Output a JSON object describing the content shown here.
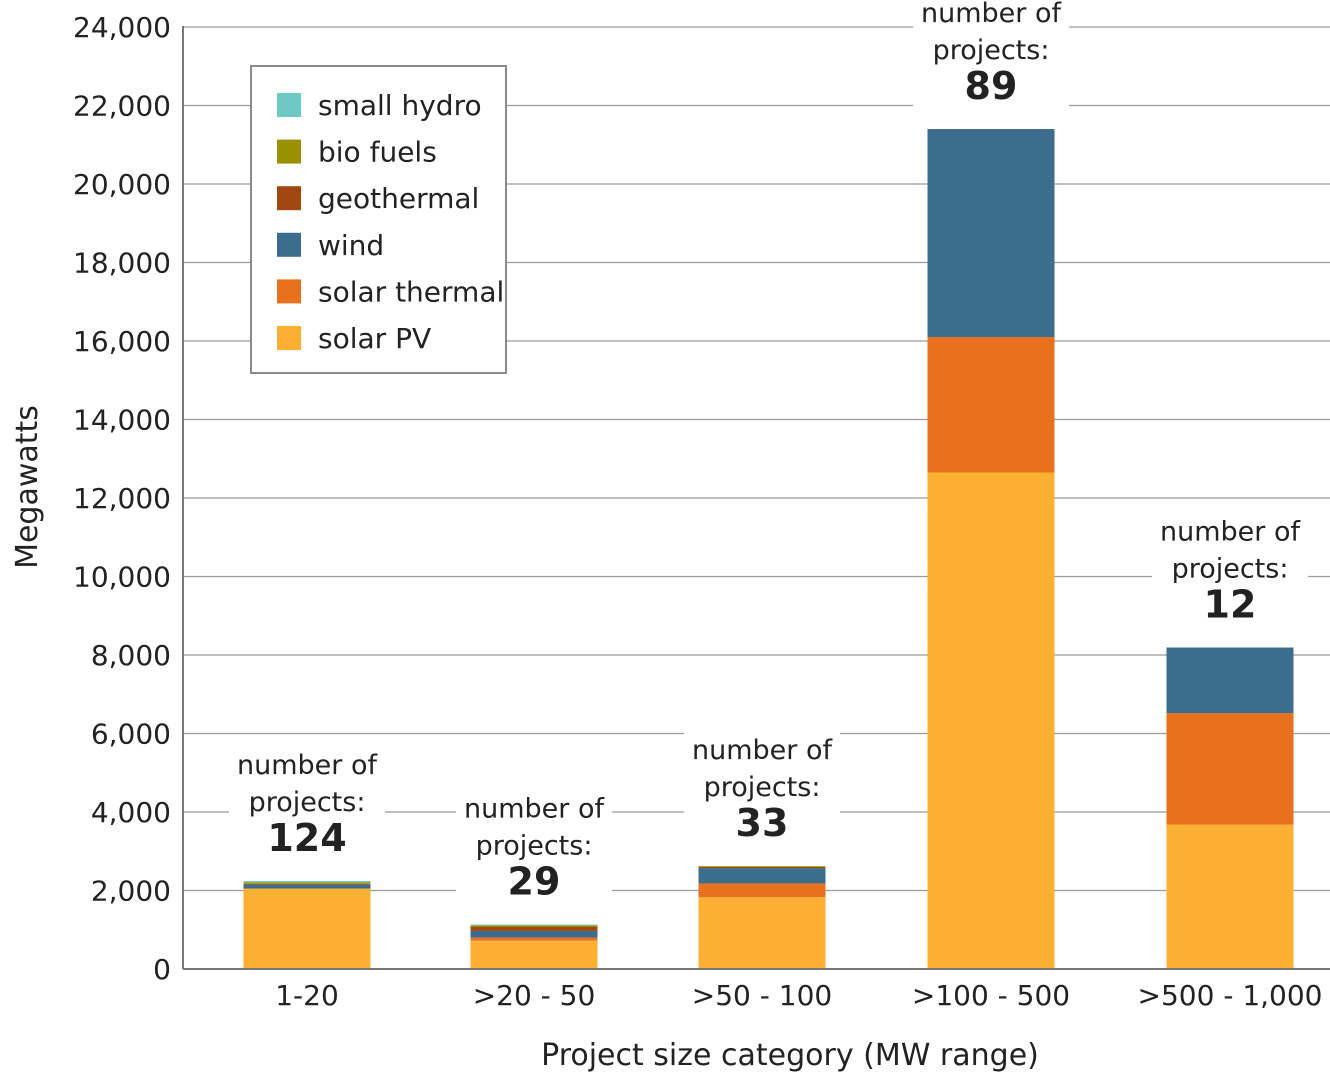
{
  "chart_data": {
    "type": "bar",
    "stacked": true,
    "xlabel": "Project size category (MW range)",
    "ylabel": "Megawatts",
    "ylim": [
      0,
      24000
    ],
    "yticks": [
      0,
      2000,
      4000,
      6000,
      8000,
      10000,
      12000,
      14000,
      16000,
      18000,
      20000,
      22000,
      24000
    ],
    "ytick_labels": [
      "0",
      "2,000",
      "4,000",
      "6,000",
      "8,000",
      "10,000",
      "12,000",
      "14,000",
      "16,000",
      "18,000",
      "20,000",
      "22,000",
      "24,000"
    ],
    "grid": true,
    "legend_position": "top-left",
    "categories": [
      "1-20",
      ">20 - 50",
      ">50 - 100",
      ">100 - 500",
      ">500 - 1,000"
    ],
    "series": [
      {
        "name": "solar PV",
        "color": "#FBB034",
        "values": [
          2050,
          720,
          1830,
          12650,
          3680
        ]
      },
      {
        "name": "solar thermal",
        "color": "#E8711F",
        "values": [
          0,
          80,
          350,
          3450,
          2840
        ]
      },
      {
        "name": "wind",
        "color": "#3D6D8E",
        "values": [
          100,
          170,
          390,
          5300,
          1670
        ]
      },
      {
        "name": "geothermal",
        "color": "#A0480F",
        "values": [
          20,
          100,
          30,
          0,
          0
        ]
      },
      {
        "name": "bio fuels",
        "color": "#9A9000",
        "values": [
          40,
          40,
          20,
          0,
          0
        ]
      },
      {
        "name": "small hydro",
        "color": "#6CC9C4",
        "values": [
          30,
          20,
          0,
          0,
          0
        ]
      }
    ],
    "annotations": [
      {
        "category": "1-20",
        "line1": "number of",
        "line2": "projects:",
        "count": "124"
      },
      {
        "category": ">20 - 50",
        "line1": "number of",
        "line2": "projects:",
        "count": "29"
      },
      {
        "category": ">50 - 100",
        "line1": "number of",
        "line2": "projects:",
        "count": "33"
      },
      {
        "category": ">100 - 500",
        "line1": "number of",
        "line2": "projects:",
        "count": "89"
      },
      {
        "category": ">500 - 1,000",
        "line1": "number of",
        "line2": "projects:",
        "count": "12"
      }
    ],
    "legend_order": [
      "small hydro",
      "bio fuels",
      "geothermal",
      "wind",
      "solar thermal",
      "solar PV"
    ]
  }
}
